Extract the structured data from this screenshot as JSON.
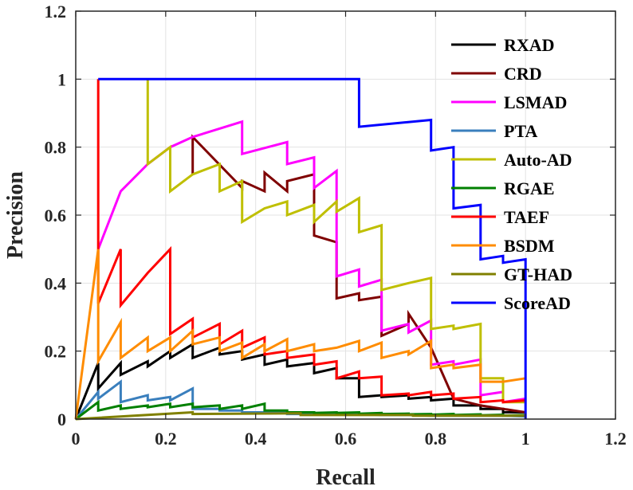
{
  "chart_data": {
    "type": "line",
    "title": "",
    "xlabel": "Recall",
    "ylabel": "Precision",
    "xlim": [
      0,
      1.2
    ],
    "ylim": [
      0,
      1.2
    ],
    "xticks": [
      0,
      0.2,
      0.4,
      0.6,
      0.8,
      1,
      1.2
    ],
    "yticks": [
      0,
      0.2,
      0.4,
      0.6,
      0.8,
      1,
      1.2
    ],
    "xtick_labels": [
      "0",
      "0.2",
      "0.4",
      "0.6",
      "0.8",
      "1",
      "1.2"
    ],
    "ytick_labels": [
      "0",
      "0.2",
      "0.4",
      "0.6",
      "0.8",
      "1",
      "1.2"
    ],
    "grid": true,
    "legend_position": "top-right",
    "series": [
      {
        "name": "RXAD",
        "color": "#000000",
        "x": [
          0,
          0.05,
          0.05,
          0.1,
          0.1,
          0.16,
          0.16,
          0.21,
          0.21,
          0.26,
          0.26,
          0.32,
          0.32,
          0.37,
          0.37,
          0.42,
          0.42,
          0.47,
          0.47,
          0.53,
          0.53,
          0.58,
          0.58,
          0.63,
          0.63,
          0.68,
          0.68,
          0.74,
          0.74,
          0.79,
          0.79,
          0.84,
          0.84,
          0.9,
          0.9,
          0.95,
          0.95,
          1.0
        ],
        "y": [
          0,
          0.165,
          0.09,
          0.165,
          0.13,
          0.17,
          0.155,
          0.2,
          0.18,
          0.22,
          0.18,
          0.21,
          0.19,
          0.2,
          0.175,
          0.19,
          0.16,
          0.175,
          0.155,
          0.165,
          0.135,
          0.15,
          0.12,
          0.12,
          0.065,
          0.07,
          0.065,
          0.07,
          0.06,
          0.065,
          0.055,
          0.06,
          0.04,
          0.04,
          0.03,
          0.03,
          0.02,
          0.02
        ]
      },
      {
        "name": "CRD",
        "color": "#7f0000",
        "x": [
          0.26,
          0.26,
          0.37,
          0.37,
          0.42,
          0.42,
          0.47,
          0.47,
          0.53,
          0.53,
          0.58,
          0.58,
          0.63,
          0.63,
          0.68,
          0.68,
          0.74,
          0.74,
          0.79,
          0.79,
          0.84,
          0.84,
          0.9,
          0.9,
          0.95,
          0.95,
          1.0
        ],
        "y": [
          0.72,
          0.83,
          0.68,
          0.7,
          0.67,
          0.725,
          0.67,
          0.7,
          0.72,
          0.54,
          0.52,
          0.355,
          0.37,
          0.35,
          0.36,
          0.245,
          0.28,
          0.31,
          0.21,
          0.21,
          0.06,
          0.06,
          0.04,
          0.04,
          0.03,
          0.03,
          0.02
        ]
      },
      {
        "name": "LSMAD",
        "color": "#ff00ff",
        "x": [
          0.05,
          0.05,
          0.1,
          0.16,
          0.21,
          0.26,
          0.37,
          0.37,
          0.47,
          0.47,
          0.53,
          0.53,
          0.58,
          0.58,
          0.63,
          0.63,
          0.68,
          0.68,
          0.74,
          0.74,
          0.79,
          0.79,
          0.84,
          0.84,
          0.9,
          0.9,
          0.95,
          0.95,
          1.0
        ],
        "y": [
          0.5,
          0.5,
          0.67,
          0.75,
          0.8,
          0.83,
          0.875,
          0.78,
          0.815,
          0.75,
          0.77,
          0.68,
          0.73,
          0.42,
          0.44,
          0.39,
          0.41,
          0.26,
          0.28,
          0.255,
          0.29,
          0.16,
          0.17,
          0.16,
          0.175,
          0.07,
          0.08,
          0.05,
          0.06
        ]
      },
      {
        "name": "PTA",
        "color": "#3a7fbd",
        "x": [
          0,
          0.05,
          0.05,
          0.1,
          0.1,
          0.16,
          0.16,
          0.21,
          0.21,
          0.26,
          0.26,
          0.32,
          0.32,
          0.37,
          0.37,
          0.42,
          0.42,
          0.47,
          0.47,
          0.53,
          0.58,
          0.63,
          0.68,
          0.74,
          0.79,
          0.84,
          0.9,
          0.95,
          1.0
        ],
        "y": [
          0,
          0.08,
          0.06,
          0.11,
          0.05,
          0.07,
          0.055,
          0.065,
          0.055,
          0.09,
          0.03,
          0.03,
          0.025,
          0.025,
          0.02,
          0.02,
          0.02,
          0.02,
          0.015,
          0.015,
          0.015,
          0.015,
          0.012,
          0.012,
          0.01,
          0.01,
          0.01,
          0.01,
          0.008
        ]
      },
      {
        "name": "Auto-AD",
        "color": "#bfbf00",
        "x": [
          0.16,
          0.16,
          0.21,
          0.21,
          0.26,
          0.32,
          0.32,
          0.37,
          0.37,
          0.42,
          0.47,
          0.47,
          0.53,
          0.53,
          0.58,
          0.58,
          0.63,
          0.63,
          0.68,
          0.68,
          0.74,
          0.79,
          0.79,
          0.84,
          0.84,
          0.9,
          0.9,
          0.95,
          0.95,
          1.0
        ],
        "y": [
          1.0,
          0.75,
          0.8,
          0.67,
          0.72,
          0.75,
          0.67,
          0.7,
          0.58,
          0.62,
          0.64,
          0.6,
          0.63,
          0.58,
          0.64,
          0.61,
          0.65,
          0.55,
          0.57,
          0.38,
          0.4,
          0.415,
          0.265,
          0.275,
          0.265,
          0.28,
          0.12,
          0.12,
          0.05,
          0.05
        ]
      },
      {
        "name": "RGAE",
        "color": "#008000",
        "x": [
          0,
          0.05,
          0.05,
          0.1,
          0.1,
          0.16,
          0.16,
          0.21,
          0.21,
          0.26,
          0.26,
          0.32,
          0.32,
          0.37,
          0.37,
          0.42,
          0.42,
          0.47,
          0.47,
          0.53,
          0.53,
          0.58,
          0.58,
          0.63,
          0.63,
          0.68,
          0.68,
          0.74,
          0.74,
          0.79,
          0.79,
          0.84,
          0.84,
          0.9,
          0.9,
          0.95,
          0.95,
          1.0
        ],
        "y": [
          0,
          0.05,
          0.025,
          0.04,
          0.03,
          0.04,
          0.035,
          0.045,
          0.035,
          0.045,
          0.035,
          0.04,
          0.03,
          0.04,
          0.03,
          0.045,
          0.025,
          0.025,
          0.02,
          0.02,
          0.018,
          0.02,
          0.018,
          0.02,
          0.016,
          0.018,
          0.015,
          0.016,
          0.014,
          0.015,
          0.013,
          0.015,
          0.012,
          0.014,
          0.011,
          0.013,
          0.01,
          0.012
        ]
      },
      {
        "name": "TAEF",
        "color": "#ff0000",
        "x": [
          0.05,
          0.05,
          0.05,
          0.1,
          0.1,
          0.16,
          0.21,
          0.21,
          0.26,
          0.26,
          0.32,
          0.32,
          0.37,
          0.37,
          0.42,
          0.42,
          0.47,
          0.47,
          0.53,
          0.53,
          0.58,
          0.58,
          0.63,
          0.63,
          0.68,
          0.68,
          0.74,
          0.74,
          0.79,
          0.79,
          0.84,
          0.84,
          0.9,
          0.9,
          0.95,
          0.95,
          1.0
        ],
        "y": [
          1.0,
          0.5,
          0.34,
          0.5,
          0.335,
          0.43,
          0.5,
          0.25,
          0.295,
          0.24,
          0.28,
          0.22,
          0.26,
          0.21,
          0.24,
          0.19,
          0.2,
          0.18,
          0.19,
          0.16,
          0.17,
          0.12,
          0.14,
          0.12,
          0.125,
          0.07,
          0.075,
          0.07,
          0.08,
          0.07,
          0.075,
          0.06,
          0.065,
          0.05,
          0.055,
          0.05,
          0.055
        ]
      },
      {
        "name": "BSDM",
        "color": "#ff8c00",
        "x": [
          0,
          0.05,
          0.05,
          0.1,
          0.1,
          0.16,
          0.16,
          0.21,
          0.21,
          0.26,
          0.26,
          0.32,
          0.32,
          0.37,
          0.37,
          0.42,
          0.42,
          0.47,
          0.47,
          0.53,
          0.53,
          0.58,
          0.58,
          0.63,
          0.63,
          0.68,
          0.68,
          0.74,
          0.74,
          0.79,
          0.79,
          0.84,
          0.84,
          0.9,
          0.9,
          0.95,
          0.95,
          1.0
        ],
        "y": [
          0,
          0.5,
          0.17,
          0.285,
          0.18,
          0.24,
          0.2,
          0.24,
          0.2,
          0.26,
          0.22,
          0.24,
          0.2,
          0.225,
          0.18,
          0.22,
          0.2,
          0.235,
          0.2,
          0.22,
          0.2,
          0.21,
          0.21,
          0.23,
          0.2,
          0.225,
          0.18,
          0.2,
          0.19,
          0.23,
          0.15,
          0.16,
          0.15,
          0.16,
          0.11,
          0.11,
          0.11,
          0.12
        ]
      },
      {
        "name": "GT-HAD",
        "color": "#808000",
        "x": [
          0,
          0.26,
          0.26,
          0.5,
          0.5,
          0.75,
          0.75,
          1.0
        ],
        "y": [
          0,
          0.02,
          0.015,
          0.017,
          0.012,
          0.012,
          0.01,
          0.01
        ]
      },
      {
        "name": "ScoreAD",
        "color": "#0000ff",
        "x": [
          0.05,
          0.63,
          0.63,
          0.79,
          0.79,
          0.84,
          0.84,
          0.9,
          0.9,
          0.95,
          0.95,
          1.0,
          1.0
        ],
        "y": [
          1.0,
          1.0,
          0.86,
          0.88,
          0.79,
          0.8,
          0.62,
          0.63,
          0.47,
          0.48,
          0.46,
          0.47,
          0
        ]
      }
    ]
  }
}
